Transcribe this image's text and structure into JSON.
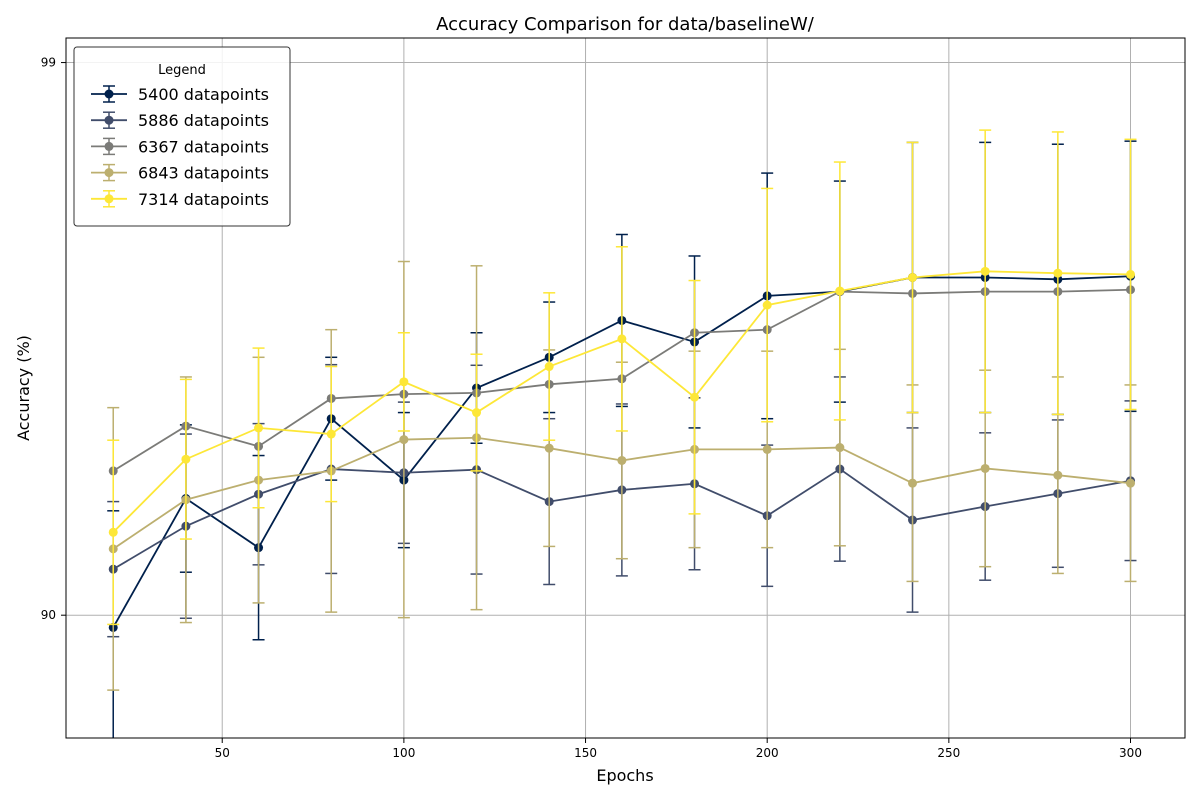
{
  "chart_data": {
    "type": "line",
    "title": "Accuracy Comparison for data/baselineW/",
    "xlabel": "Epochs",
    "ylabel": "Accuracy (%)",
    "xlim": [
      7,
      315
    ],
    "ylim": [
      88,
      99.4
    ],
    "xticks": [
      50,
      100,
      150,
      200,
      250,
      300
    ],
    "yticks": [
      90,
      99
    ],
    "grid": true,
    "legend": {
      "title": "Legend",
      "placement": "top-left"
    },
    "x": [
      20,
      40,
      60,
      80,
      100,
      120,
      140,
      160,
      180,
      200,
      220,
      240,
      260,
      280,
      300
    ],
    "series": [
      {
        "name": "5400 datapoints",
        "color": "#00204c",
        "values": [
          89.8,
          91.9,
          91.1,
          93.2,
          92.2,
          93.7,
          94.2,
          94.8,
          94.45,
          95.2,
          95.27,
          95.5,
          95.5,
          95.47,
          95.52
        ],
        "errors": [
          1.9,
          1.2,
          1.5,
          1.0,
          1.1,
          0.9,
          0.9,
          1.4,
          1.4,
          2.0,
          1.8,
          2.2,
          2.2,
          2.2,
          2.2
        ]
      },
      {
        "name": "5886 datapoints",
        "color": "#414d6b",
        "values": [
          90.75,
          91.45,
          91.97,
          92.38,
          92.32,
          92.37,
          91.85,
          92.04,
          92.14,
          91.62,
          92.38,
          91.55,
          91.77,
          91.98,
          92.19
        ],
        "errors": [
          1.1,
          1.5,
          1.15,
          1.7,
          1.15,
          1.7,
          1.35,
          1.4,
          1.4,
          1.15,
          1.5,
          1.5,
          1.2,
          1.2,
          1.3
        ]
      },
      {
        "name": "6367 datapoints",
        "color": "#7b7b78",
        "values": [
          92.35,
          93.08,
          92.75,
          93.53,
          93.6,
          93.62,
          93.76,
          93.85,
          94.6,
          94.65,
          95.27,
          95.24,
          95.27,
          95.27,
          95.3
        ]
      },
      {
        "name": "6843 datapoints",
        "color": "#bcaf6f",
        "values": [
          91.08,
          91.88,
          92.2,
          92.35,
          92.86,
          92.89,
          92.72,
          92.52,
          92.7,
          92.7,
          92.73,
          92.15,
          92.39,
          92.28,
          92.15
        ],
        "errors": [
          2.3,
          2.0,
          2.0,
          2.3,
          2.9,
          2.8,
          1.6,
          1.6,
          1.6,
          1.6,
          1.6,
          1.6,
          1.6,
          1.6,
          1.6
        ]
      },
      {
        "name": "7314 datapoints",
        "color": "#fde737",
        "values": [
          91.35,
          92.54,
          93.05,
          92.95,
          93.8,
          93.3,
          94.05,
          94.5,
          93.55,
          95.05,
          95.28,
          95.5,
          95.6,
          95.57,
          95.55
        ],
        "errors": [
          1.5,
          1.3,
          1.3,
          1.1,
          0.8,
          0.95,
          1.2,
          1.5,
          1.9,
          1.9,
          2.1,
          2.2,
          2.3,
          2.3,
          2.2
        ]
      }
    ]
  }
}
